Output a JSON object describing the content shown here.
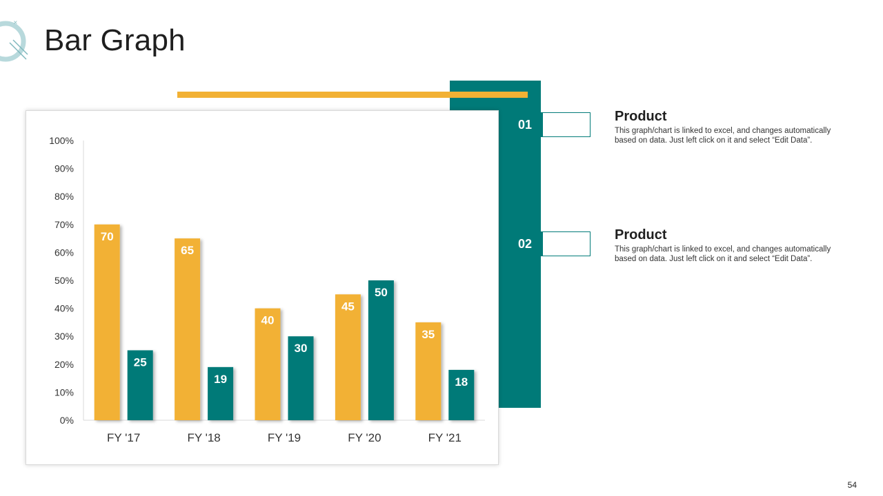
{
  "slide": {
    "title": "Bar Graph",
    "page_number": "54"
  },
  "items": [
    {
      "number": "01",
      "title": "Product",
      "text": "This graph/chart is linked to excel, and changes automatically based on data. Just left click on it and select “Edit Data”."
    },
    {
      "number": "02",
      "title": "Product",
      "text": "This graph/chart is linked to excel, and changes automatically based on data. Just left click on it and select “Edit Data”."
    }
  ],
  "colors": {
    "accent_gold": "#F2B134",
    "accent_teal": "#007A78"
  },
  "chart_data": {
    "type": "bar",
    "categories": [
      "FY '17",
      "FY '18",
      "FY '19",
      "FY '20",
      "FY '21"
    ],
    "series": [
      {
        "values": [
          70,
          65,
          40,
          45,
          35
        ],
        "color": "#F2B134"
      },
      {
        "values": [
          25,
          19,
          30,
          50,
          18
        ],
        "color": "#007A78"
      }
    ],
    "ylim": [
      0,
      100
    ],
    "yticks": [
      0,
      10,
      20,
      30,
      40,
      50,
      60,
      70,
      80,
      90,
      100
    ],
    "ytick_suffix": "%",
    "data_labels": true,
    "grid": false,
    "legend": "none",
    "title": "",
    "xlabel": "",
    "ylabel": ""
  }
}
